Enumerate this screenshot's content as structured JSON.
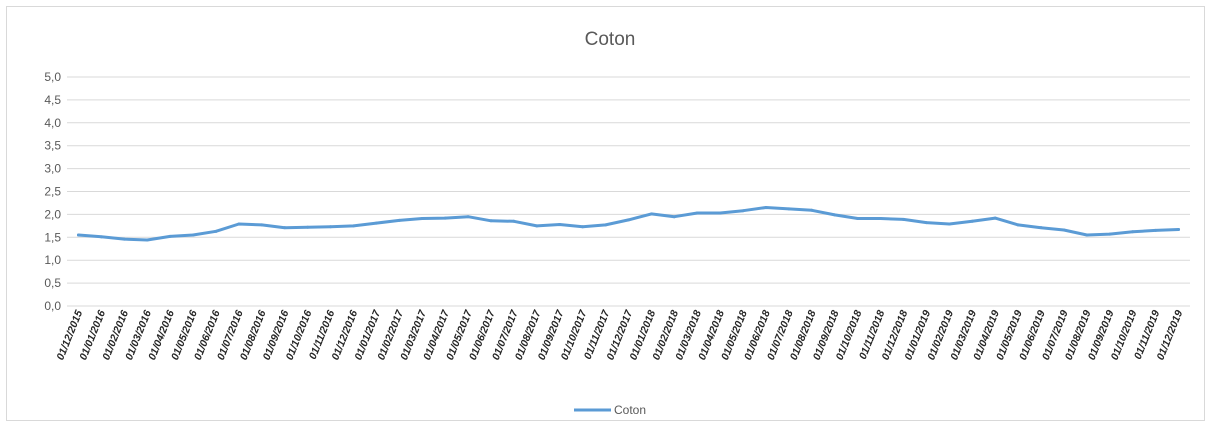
{
  "chart_data": {
    "type": "line",
    "title": "Coton",
    "xlabel": "",
    "ylabel": "",
    "ylim": [
      0,
      5
    ],
    "y_ticks": [
      "0,0",
      "0,5",
      "1,0",
      "1,5",
      "2,0",
      "2,5",
      "3,0",
      "3,5",
      "4,0",
      "4,5",
      "5,0"
    ],
    "grid": true,
    "legend_position": "bottom",
    "x": [
      "01/12/2015",
      "01/01/2016",
      "01/02/2016",
      "01/03/2016",
      "01/04/2016",
      "01/05/2016",
      "01/06/2016",
      "01/07/2016",
      "01/08/2016",
      "01/09/2016",
      "01/10/2016",
      "01/11/2016",
      "01/12/2016",
      "01/01/2017",
      "01/02/2017",
      "01/03/2017",
      "01/04/2017",
      "01/05/2017",
      "01/06/2017",
      "01/07/2017",
      "01/08/2017",
      "01/09/2017",
      "01/10/2017",
      "01/11/2017",
      "01/12/2017",
      "01/01/2018",
      "01/02/2018",
      "01/03/2018",
      "01/04/2018",
      "01/05/2018",
      "01/06/2018",
      "01/07/2018",
      "01/08/2018",
      "01/09/2018",
      "01/10/2018",
      "01/11/2018",
      "01/12/2018",
      "01/01/2019",
      "01/02/2019",
      "01/03/2019",
      "01/04/2019",
      "01/05/2019",
      "01/06/2019",
      "01/07/2019",
      "01/08/2019",
      "01/09/2019",
      "01/10/2019",
      "01/11/2019",
      "01/12/2019"
    ],
    "series": [
      {
        "name": "Coton",
        "color": "#5b9bd5",
        "values": [
          1.55,
          1.51,
          1.46,
          1.44,
          1.52,
          1.55,
          1.63,
          1.79,
          1.77,
          1.71,
          1.72,
          1.73,
          1.75,
          1.81,
          1.87,
          1.91,
          1.92,
          1.95,
          1.86,
          1.85,
          1.75,
          1.78,
          1.73,
          1.77,
          1.88,
          2.01,
          1.95,
          2.03,
          2.03,
          2.08,
          2.15,
          2.12,
          2.09,
          1.99,
          1.91,
          1.91,
          1.89,
          1.82,
          1.79,
          1.85,
          1.92,
          1.77,
          1.71,
          1.66,
          1.55,
          1.57,
          1.62,
          1.65,
          1.67
        ]
      }
    ]
  }
}
